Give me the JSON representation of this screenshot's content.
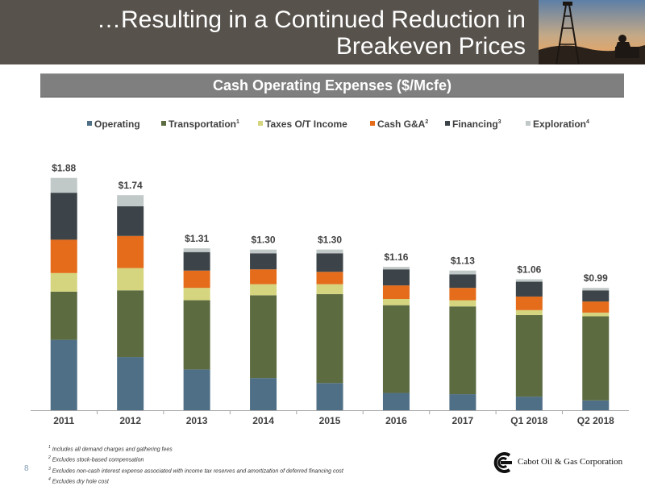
{
  "header": {
    "title_line1": "…Resulting in a Continued Reduction in",
    "title_line2": "Breakeven Prices"
  },
  "section": {
    "title": "Cash Operating Expenses ($/Mcfe)"
  },
  "chart_data": {
    "type": "bar",
    "stacked": true,
    "title": "Cash Operating Expenses ($/Mcfe)",
    "categories": [
      "2011",
      "2012",
      "2013",
      "2014",
      "2015",
      "2016",
      "2017",
      "Q1 2018",
      "Q2 2018"
    ],
    "totals_labels": [
      "$1.88",
      "$1.74",
      "$1.31",
      "$1.30",
      "$1.30",
      "$1.16",
      "$1.13",
      "$1.06",
      "$0.99"
    ],
    "totals": [
      1.88,
      1.74,
      1.31,
      1.3,
      1.3,
      1.16,
      1.13,
      1.06,
      0.99
    ],
    "series": [
      {
        "name": "Operating",
        "sup": "",
        "color": "#4f6f86",
        "values": [
          0.57,
          0.43,
          0.33,
          0.26,
          0.22,
          0.14,
          0.13,
          0.11,
          0.08
        ]
      },
      {
        "name": "Transportation",
        "sup": "1",
        "color": "#5c6b40",
        "values": [
          0.39,
          0.54,
          0.56,
          0.67,
          0.72,
          0.71,
          0.71,
          0.66,
          0.68
        ]
      },
      {
        "name": "Taxes O/T Income",
        "sup": "",
        "color": "#d5d57f",
        "values": [
          0.15,
          0.18,
          0.1,
          0.09,
          0.08,
          0.05,
          0.05,
          0.04,
          0.03
        ]
      },
      {
        "name": "Cash G&A",
        "sup": "2",
        "color": "#e46c1b",
        "values": [
          0.27,
          0.26,
          0.14,
          0.12,
          0.1,
          0.11,
          0.1,
          0.11,
          0.09
        ]
      },
      {
        "name": "Financing",
        "sup": "3",
        "color": "#3d4449",
        "values": [
          0.38,
          0.24,
          0.15,
          0.13,
          0.15,
          0.13,
          0.11,
          0.12,
          0.09
        ]
      },
      {
        "name": "Exploration",
        "sup": "4",
        "color": "#c1c8c8",
        "values": [
          0.12,
          0.09,
          0.03,
          0.03,
          0.03,
          0.02,
          0.03,
          0.02,
          0.02
        ]
      }
    ],
    "ylim": [
      0,
      1.95
    ],
    "grid": false,
    "legend_position": "top"
  },
  "footnotes": [
    {
      "sup": "1",
      "text": "Includes all demand charges and gathering fees"
    },
    {
      "sup": "2",
      "text": "Excludes stock-based compensation"
    },
    {
      "sup": "3",
      "text": "Excludes non-cash interest expense associated with income tax reserves and amortization of deferred financing cost"
    },
    {
      "sup": "4",
      "text": "Excludes dry hole cost"
    }
  ],
  "page_number": "8",
  "company": {
    "name": "Cabot Oil & Gas Corporation"
  }
}
